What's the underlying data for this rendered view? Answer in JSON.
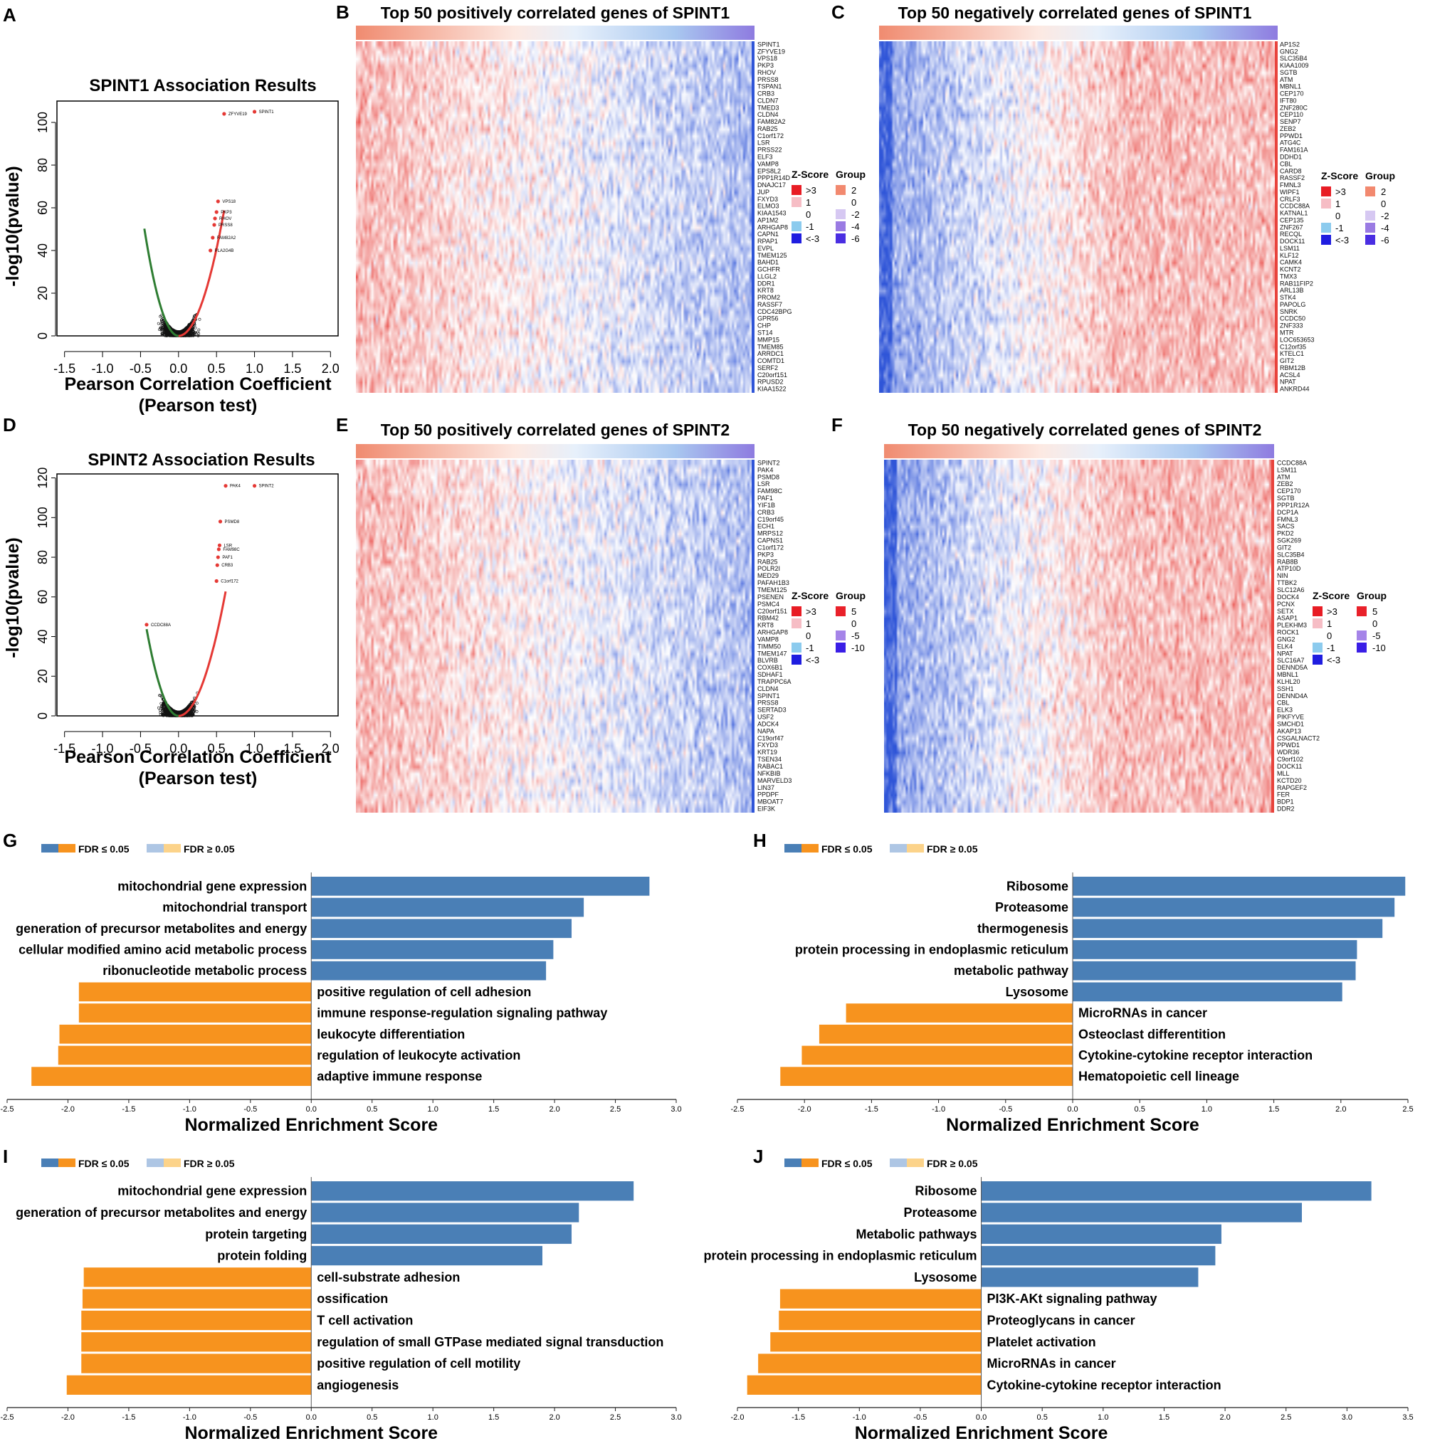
{
  "panel_letters": [
    "A",
    "B",
    "C",
    "D",
    "E",
    "F",
    "G",
    "H",
    "I",
    "J"
  ],
  "colors": {
    "fdr_up": "#4a7fb6",
    "fdr_down": "#f7931e",
    "fdr_up_ns": "#aec6e4",
    "fdr_down_ns": "#fcd38a",
    "volcano_neg": "#2e7d32",
    "volcano_pos": "#e53935",
    "heat_red": "#e8433c",
    "heat_blue": "#2f55d8"
  },
  "fdr_legend": {
    "sig": "FDR ≤ 0.05",
    "nonsig": "FDR ≥ 0.05"
  },
  "heatmap_legend": {
    "zscore_title": "Z-Score",
    "group_title": "Group",
    "zscore_items": [
      ">3",
      "1",
      "0",
      "-1",
      "<-3"
    ],
    "group_items_1": [
      "2",
      "0",
      "-2",
      "-4",
      "-6"
    ],
    "group_items_2": [
      "5",
      "0",
      "-5",
      "-10"
    ]
  },
  "chart_data": [
    {
      "id": "A",
      "type": "scatter",
      "title": "SPINT1 Association Results",
      "xlabel": "Pearson Correlation Coefficient",
      "xlabel2": "(Pearson test)",
      "ylabel": "-log10(pvalue)",
      "xlim": [
        -1.6,
        2.1
      ],
      "ylim": [
        0,
        110
      ],
      "xticks": [
        "-1.5",
        "-1.0",
        "-0.5",
        "0.0",
        "0.5",
        "1.0",
        "1.5",
        "2.0"
      ],
      "xtick_values": [
        -1.5,
        -1.0,
        -0.5,
        0.0,
        0.5,
        1.0,
        1.5,
        2.0
      ],
      "yticks": [
        "0",
        "20",
        "40",
        "60",
        "80",
        "100"
      ],
      "ytick_values": [
        0,
        20,
        40,
        60,
        80,
        100
      ],
      "highlight_points": [
        {
          "label": "SPINT1",
          "x": 1.0,
          "y": 105
        },
        {
          "label": "ZFYVE19",
          "x": 0.6,
          "y": 104
        },
        {
          "label": "VPS18",
          "x": 0.52,
          "y": 63
        },
        {
          "label": "PKP3",
          "x": 0.5,
          "y": 58
        },
        {
          "label": "RHOV",
          "x": 0.48,
          "y": 55
        },
        {
          "label": "PRSS8",
          "x": 0.47,
          "y": 52
        },
        {
          "label": "FAM82A2",
          "x": 0.45,
          "y": 46
        },
        {
          "label": "PLA2G4B",
          "x": 0.42,
          "y": 40
        }
      ],
      "neg_tail_x": -0.45,
      "pos_tail_x": 0.6
    },
    {
      "id": "B",
      "type": "heatmap",
      "title": "Top 50 positively correlated genes of SPINT1",
      "direction": "positive",
      "rows": [
        "SPINT1",
        "ZFYVE19",
        "VPS18",
        "PKP3",
        "RHOV",
        "PRSS8",
        "TSPAN1",
        "CRB3",
        "CLDN7",
        "TMED3",
        "CLDN4",
        "FAM82A2",
        "RAB25",
        "C1orf172",
        "LSR",
        "PRSS22",
        "ELF3",
        "VAMP8",
        "EPS8L2",
        "PPP1R14D",
        "DNAJC17",
        "JUP",
        "FXYD3",
        "ELMO3",
        "KIAA1543",
        "AP1M2",
        "ARHGAP8",
        "CAPN1",
        "RPAP1",
        "EVPL",
        "TMEM125",
        "BAHD1",
        "GCHFR",
        "LLGL2",
        "DDR1",
        "KRT8",
        "PROM2",
        "RASSF7",
        "CDC42BPG",
        "GPR56",
        "CHP",
        "ST14",
        "MMP15",
        "TMEM85",
        "ARRDC1",
        "COMTD1",
        "SERF2",
        "C20orf151",
        "RPUSD2",
        "KIAA1522"
      ]
    },
    {
      "id": "C",
      "type": "heatmap",
      "title": "Top 50 negatively correlated genes of SPINT1",
      "direction": "negative",
      "rows": [
        "AP1S2",
        "GNG2",
        "SLC35B4",
        "KIAA1009",
        "SGTB",
        "ATM",
        "MBNL1",
        "CEP170",
        "IFT80",
        "ZNF280C",
        "CEP110",
        "SENP7",
        "ZEB2",
        "PPWD1",
        "ATG4C",
        "FAM161A",
        "DDHD1",
        "CBL",
        "CARD8",
        "RASSF2",
        "FMNL3",
        "WIPF1",
        "CRLF3",
        "CCDC88A",
        "KATNAL1",
        "CEP135",
        "ZNF267",
        "RECQL",
        "DOCK11",
        "LSM11",
        "KLF12",
        "CAMK4",
        "KCNT2",
        "TMX3",
        "RAB11FIP2",
        "ARL13B",
        "STK4",
        "PAPOLG",
        "SNRK",
        "CCDC50",
        "ZNF333",
        "MTR",
        "LOC653653",
        "C12orf35",
        "KTELC1",
        "GIT2",
        "RBM12B",
        "ACSL4",
        "NPAT",
        "ANKRD44"
      ]
    },
    {
      "id": "D",
      "type": "scatter",
      "title": "SPINT2 Association Results",
      "xlabel": "Pearson Correlation Coefficient",
      "xlabel2": "(Pearson test)",
      "ylabel": "-log10(pvalue)",
      "xlim": [
        -1.6,
        2.1
      ],
      "ylim": [
        0,
        122
      ],
      "xticks": [
        "-1.5",
        "-1.0",
        "-0.5",
        "0.0",
        "0.5",
        "1.0",
        "1.5",
        "2.0"
      ],
      "xtick_values": [
        -1.5,
        -1.0,
        -0.5,
        0.0,
        0.5,
        1.0,
        1.5,
        2.0
      ],
      "yticks": [
        "0",
        "20",
        "40",
        "60",
        "80",
        "100",
        "120"
      ],
      "ytick_values": [
        0,
        20,
        40,
        60,
        80,
        100,
        120
      ],
      "highlight_points": [
        {
          "label": "SPINT2",
          "x": 1.0,
          "y": 116
        },
        {
          "label": "PAK4",
          "x": 0.62,
          "y": 116
        },
        {
          "label": "PSMD8",
          "x": 0.55,
          "y": 98
        },
        {
          "label": "LSR",
          "x": 0.54,
          "y": 86
        },
        {
          "label": "FAM98C",
          "x": 0.53,
          "y": 84
        },
        {
          "label": "PAF1",
          "x": 0.52,
          "y": 80
        },
        {
          "label": "CRB3",
          "x": 0.51,
          "y": 76
        },
        {
          "label": "C1orf172",
          "x": 0.5,
          "y": 68
        },
        {
          "label": "CCDC88A",
          "x": -0.42,
          "y": 46
        }
      ],
      "neg_tail_x": -0.42,
      "pos_tail_x": 0.62
    },
    {
      "id": "E",
      "type": "heatmap",
      "title": "Top 50 positively correlated genes of SPINT2",
      "direction": "positive",
      "rows": [
        "SPINT2",
        "PAK4",
        "PSMD8",
        "LSR",
        "FAM98C",
        "PAF1",
        "YIF1B",
        "CRB3",
        "C19orf45",
        "ECH1",
        "MRPS12",
        "CAPNS1",
        "C1orf172",
        "PKP3",
        "RAB25",
        "POLR2I",
        "MED29",
        "PAFAH1B3",
        "TMEM125",
        "PSENEN",
        "PSMC4",
        "C20orf151",
        "RBM42",
        "KRT8",
        "ARHGAP8",
        "VAMP8",
        "TIMM50",
        "TMEM147",
        "BLVRB",
        "COX6B1",
        "SDHAF1",
        "TRAPPC6A",
        "CLDN4",
        "SPINT1",
        "PRSS8",
        "SERTAD3",
        "USF2",
        "ADCK4",
        "NAPA",
        "C19orf47",
        "FXYD3",
        "KRT19",
        "TSEN34",
        "RABAC1",
        "NFKBIB",
        "MARVELD3",
        "LIN37",
        "PPDPF",
        "MBOAT7",
        "EIF3K"
      ]
    },
    {
      "id": "F",
      "type": "heatmap",
      "title": "Top 50 negatively correlated genes of SPINT2",
      "direction": "negative",
      "rows": [
        "CCDC88A",
        "LSM11",
        "ATM",
        "ZEB2",
        "CEP170",
        "SGTB",
        "PPP1R12A",
        "DCP1A",
        "FMNL3",
        "SACS",
        "PKD2",
        "SGK269",
        "GIT2",
        "SLC35B4",
        "RAB8B",
        "ATP10D",
        "NIN",
        "TTBK2",
        "SLC12A6",
        "DOCK4",
        "PCNX",
        "SETX",
        "ASAP1",
        "PLEKHM3",
        "ROCK1",
        "GNG2",
        "ELK4",
        "NPAT",
        "SLC16A7",
        "DENND5A",
        "MBNL1",
        "KLHL20",
        "SSH1",
        "DENND4A",
        "CBL",
        "ELK3",
        "PIKFYVE",
        "SMCHD1",
        "AKAP13",
        "CSGALNACT2",
        "PPWD1",
        "WDR36",
        "C9orf102",
        "DOCK11",
        "MLL",
        "KCTD20",
        "RAPGEF2",
        "FER",
        "BDP1",
        "DDR2"
      ]
    },
    {
      "id": "G",
      "type": "bar",
      "orientation": "horizontal",
      "xlabel": "Normalized Enrichment Score",
      "xlim": [
        -2.5,
        3.0
      ],
      "xticks": [
        "-2.5",
        "-2.0",
        "-1.5",
        "-1.0",
        "-0.5",
        "0.0",
        "0.5",
        "1.0",
        "1.5",
        "2.0",
        "2.5",
        "3.0"
      ],
      "xtick_values": [
        -2.5,
        -2.0,
        -1.5,
        -1.0,
        -0.5,
        0.0,
        0.5,
        1.0,
        1.5,
        2.0,
        2.5,
        3.0
      ],
      "categories": [
        "mitochondrial gene expression",
        "mitochondrial transport",
        "generation of precursor metabolites and energy",
        "cellular modified amino acid metabolic process",
        "ribonucleotide metabolic process",
        "positive regulation of cell adhesion",
        "immune response-regulation signaling pathway",
        "leukocyte differentiation",
        "regulation of leukocyte activation",
        "adaptive immune response"
      ],
      "values": [
        2.78,
        2.24,
        2.14,
        1.99,
        1.93,
        -1.91,
        -1.91,
        -2.07,
        -2.08,
        -2.3
      ]
    },
    {
      "id": "H",
      "type": "bar",
      "orientation": "horizontal",
      "xlabel": "Normalized Enrichment Score",
      "xlim": [
        -2.5,
        2.5
      ],
      "xticks": [
        "-2.5",
        "-2.0",
        "-1.5",
        "-1.0",
        "-0.5",
        "0.0",
        "0.5",
        "1.0",
        "1.5",
        "2.0",
        "2.5"
      ],
      "xtick_values": [
        -2.5,
        -2.0,
        -1.5,
        -1.0,
        -0.5,
        0.0,
        0.5,
        1.0,
        1.5,
        2.0,
        2.5
      ],
      "categories": [
        "Ribosome",
        "Proteasome",
        "thermogenesis",
        "protein processing in endoplasmic reticulum",
        "metabolic pathway",
        "Lysosome",
        "MicroRNAs in cancer",
        "Osteoclast differentition",
        "Cytokine-cytokine receptor interaction",
        "Hematopoietic cell lineage"
      ],
      "values": [
        2.48,
        2.4,
        2.31,
        2.12,
        2.11,
        2.01,
        -1.69,
        -1.89,
        -2.02,
        -2.18
      ]
    },
    {
      "id": "I",
      "type": "bar",
      "orientation": "horizontal",
      "xlabel": "Normalized Enrichment Score",
      "xlim": [
        -2.5,
        3.0
      ],
      "xticks": [
        "-2.5",
        "-2.0",
        "-1.5",
        "-1.0",
        "-0.5",
        "0.0",
        "0.5",
        "1.0",
        "1.5",
        "2.0",
        "2.5",
        "3.0"
      ],
      "xtick_values": [
        -2.5,
        -2.0,
        -1.5,
        -1.0,
        -0.5,
        0.0,
        0.5,
        1.0,
        1.5,
        2.0,
        2.5,
        3.0
      ],
      "categories": [
        "mitochondrial gene expression",
        "generation of precursor metabolites and energy",
        "protein targeting",
        "protein folding",
        "cell-substrate adhesion",
        "ossification",
        "T cell activation",
        "regulation of small GTPase mediated signal transduction",
        "positive regulation of cell motility",
        "angiogenesis"
      ],
      "values": [
        2.65,
        2.2,
        2.14,
        1.9,
        -1.87,
        -1.88,
        -1.89,
        -1.89,
        -1.89,
        -2.01
      ]
    },
    {
      "id": "J",
      "type": "bar",
      "orientation": "horizontal",
      "xlabel": "Normalized Enrichment Score",
      "xlim": [
        -2.0,
        3.5
      ],
      "xticks": [
        "-2.0",
        "-1.5",
        "-1.0",
        "-0.5",
        "0.0",
        "0.5",
        "1.0",
        "1.5",
        "2.0",
        "2.5",
        "3.0",
        "3.5"
      ],
      "xtick_values": [
        -2.0,
        -1.5,
        -1.0,
        -0.5,
        0.0,
        0.5,
        1.0,
        1.5,
        2.0,
        2.5,
        3.0,
        3.5
      ],
      "categories": [
        "Ribosome",
        "Proteasome",
        "Metabolic pathways",
        "protein processing in endoplasmic reticulum",
        "Lysosome",
        "PI3K-AKt signaling pathway",
        "Proteoglycans in cancer",
        "Platelet activation",
        "MicroRNAs in cancer",
        "Cytokine-cytokine receptor interaction"
      ],
      "values": [
        3.2,
        2.63,
        1.97,
        1.92,
        1.78,
        -1.65,
        -1.66,
        -1.73,
        -1.83,
        -1.92
      ]
    }
  ]
}
